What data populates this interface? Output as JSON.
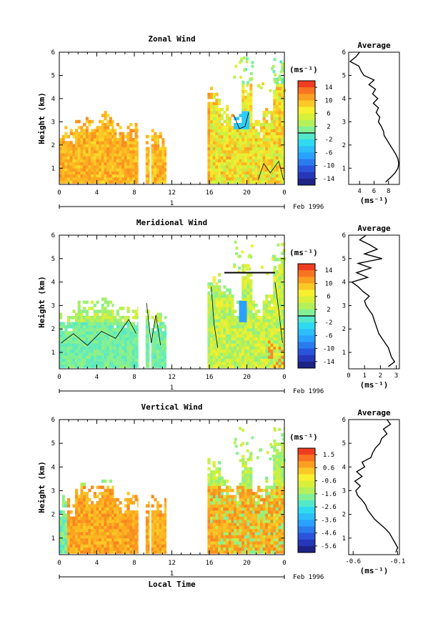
{
  "chart_data": [
    {
      "type": "heatmap",
      "title": "Zonal Wind",
      "ylabel": "Height (km)",
      "yticks": [
        "1",
        "2",
        "3",
        "4",
        "5",
        "6"
      ],
      "ylim": [
        0.3,
        6.0
      ],
      "xticks": [
        "0",
        "4",
        "8",
        "12",
        "16",
        "20",
        "0"
      ],
      "xlim": [
        0,
        24
      ],
      "date_label": "Feb 1996",
      "day_label": "1",
      "colorbar": {
        "unit": "(ms⁻¹)",
        "labels": [
          "14",
          "10",
          "6",
          "2",
          "-2",
          "-6",
          "-10",
          "-14"
        ],
        "range": [
          -16,
          16
        ]
      },
      "zero_contour": true,
      "average": {
        "title": "Average",
        "xlabel": "(ms⁻¹)",
        "xticks": [
          "4",
          "6",
          "8"
        ],
        "xlim": [
          2.5,
          9.5
        ],
        "height": [
          0.4,
          0.6,
          0.8,
          1.0,
          1.2,
          1.4,
          1.6,
          1.8,
          2.0,
          2.2,
          2.4,
          2.6,
          2.8,
          3.0,
          3.2,
          3.4,
          3.6,
          3.8,
          4.0,
          4.2,
          4.4,
          4.6,
          4.8,
          5.0,
          5.2,
          5.4,
          5.6,
          5.8,
          6.0
        ],
        "value": [
          7.6,
          8.3,
          8.9,
          9.3,
          9.4,
          9.3,
          9.0,
          8.6,
          8.2,
          7.8,
          7.4,
          7.3,
          7.0,
          6.6,
          6.8,
          6.3,
          6.6,
          5.9,
          6.5,
          5.8,
          6.2,
          5.3,
          6.0,
          4.6,
          4.2,
          3.9,
          2.7,
          3.5,
          4.0
        ]
      }
    },
    {
      "type": "heatmap",
      "title": "Meridional Wind",
      "ylabel": "Height (km)",
      "yticks": [
        "1",
        "2",
        "3",
        "4",
        "5",
        "6"
      ],
      "ylim": [
        0.3,
        6.0
      ],
      "xticks": [
        "0",
        "4",
        "8",
        "12",
        "16",
        "20",
        "0"
      ],
      "xlim": [
        0,
        24
      ],
      "date_label": "Feb 1996",
      "day_label": "1",
      "colorbar": {
        "unit": "(ms⁻¹)",
        "labels": [
          "14",
          "10",
          "6",
          "2",
          "-2",
          "-6",
          "-10",
          "-14"
        ],
        "range": [
          -16,
          16
        ]
      },
      "zero_contour": true,
      "average": {
        "title": "Average",
        "xlabel": "(ms⁻¹)",
        "xticks": [
          "0",
          "1",
          "2",
          "3"
        ],
        "xlim": [
          0,
          3.2
        ],
        "height": [
          0.4,
          0.6,
          0.8,
          1.0,
          1.2,
          1.4,
          1.6,
          1.8,
          2.0,
          2.2,
          2.4,
          2.6,
          2.8,
          3.0,
          3.2,
          3.4,
          3.6,
          3.8,
          4.0,
          4.2,
          4.4,
          4.6,
          4.8,
          5.0,
          5.2,
          5.4,
          5.6,
          5.8,
          6.0
        ],
        "value": [
          2.5,
          2.9,
          2.7,
          2.6,
          2.5,
          2.3,
          2.1,
          1.9,
          1.8,
          1.7,
          1.6,
          1.5,
          1.3,
          1.1,
          1.0,
          1.3,
          0.9,
          0.6,
          0.2,
          1.2,
          0.5,
          1.4,
          0.6,
          2.1,
          1.0,
          1.8,
          1.3,
          0.7,
          1.1
        ]
      }
    },
    {
      "type": "heatmap",
      "title": "Vertical Wind",
      "ylabel": "Height (km)",
      "xlabel": "Local Time",
      "yticks": [
        "1",
        "2",
        "3",
        "4",
        "5",
        "6"
      ],
      "ylim": [
        0.3,
        6.0
      ],
      "xticks": [
        "0",
        "4",
        "8",
        "12",
        "16",
        "20",
        "0"
      ],
      "xlim": [
        0,
        24
      ],
      "date_label": "Feb 1996",
      "day_label": "1",
      "colorbar": {
        "unit": "(ms⁻¹)",
        "labels": [
          "1.5",
          "0.6",
          "-0.6",
          "-1.6",
          "-2.6",
          "-3.6",
          "-4.6",
          "-5.6"
        ],
        "range": [
          -6.0,
          2.0
        ]
      },
      "zero_contour": false,
      "average": {
        "title": "Average",
        "xlabel": "(ms⁻¹)",
        "xticks": [
          "-0.6",
          "-0.1"
        ],
        "xlim": [
          -0.65,
          -0.08
        ],
        "height": [
          0.4,
          0.6,
          0.8,
          1.0,
          1.2,
          1.4,
          1.6,
          1.8,
          2.0,
          2.2,
          2.4,
          2.6,
          2.8,
          3.0,
          3.2,
          3.4,
          3.6,
          3.8,
          4.0,
          4.2,
          4.4,
          4.6,
          4.8,
          5.0,
          5.2,
          5.4,
          5.6,
          5.8,
          6.0
        ],
        "value": [
          -0.12,
          -0.1,
          -0.13,
          -0.16,
          -0.19,
          -0.24,
          -0.3,
          -0.36,
          -0.4,
          -0.44,
          -0.46,
          -0.5,
          -0.55,
          -0.57,
          -0.52,
          -0.58,
          -0.5,
          -0.56,
          -0.47,
          -0.5,
          -0.4,
          -0.38,
          -0.35,
          -0.3,
          -0.28,
          -0.22,
          -0.26,
          -0.18,
          -0.22
        ]
      }
    }
  ]
}
